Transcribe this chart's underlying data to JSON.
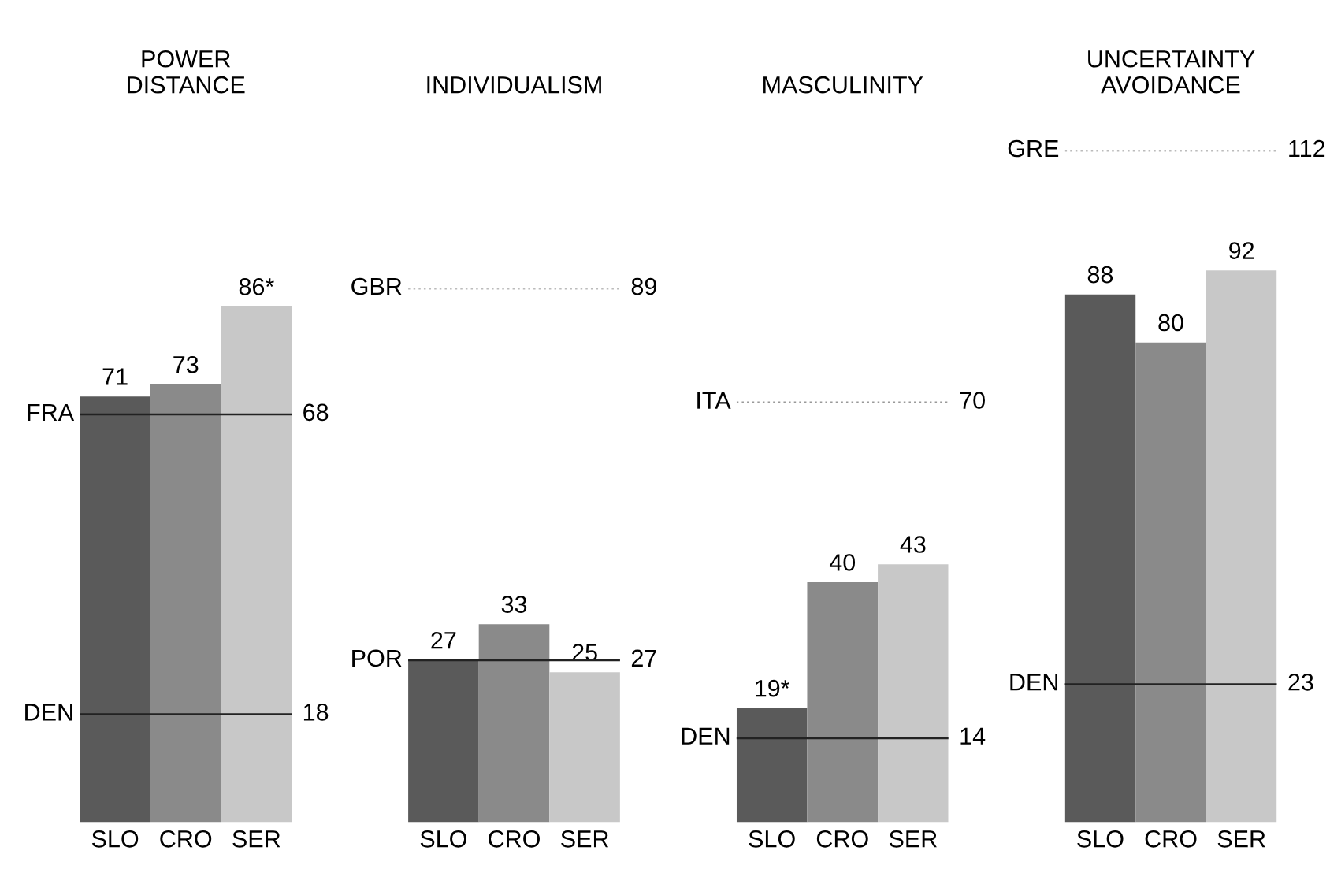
{
  "chart_data": [
    {
      "type": "bar",
      "title": "POWER\nDISTANCE",
      "categories": [
        "SLO",
        "CRO",
        "SER"
      ],
      "values": [
        71,
        73,
        86
      ],
      "value_labels": [
        "71",
        "73",
        "86*"
      ],
      "colors": [
        "#5a5a5a",
        "#8a8a8a",
        "#c8c8c8"
      ],
      "tick_labels": "x",
      "ref_lines": [
        {
          "axis": "y",
          "value": 68,
          "label": "FRA",
          "line_style": "solid",
          "color": "#222222"
        },
        {
          "axis": "y",
          "value": 18,
          "label": "DEN",
          "line_style": "solid",
          "color": "#222222"
        }
      ],
      "annotations": [
        "68",
        "18"
      ]
    },
    {
      "type": "bar",
      "title": "INDIVIDUALISM",
      "categories": [
        "SLO",
        "CRO",
        "SER"
      ],
      "values": [
        27,
        33,
        25
      ],
      "data_labels": true,
      "colors": [
        "#5a5a5a",
        "#8a8a8a",
        "#c8c8c8"
      ],
      "tick_labels": "x",
      "ref_lines": [
        {
          "axis": "y",
          "value": 89,
          "label": "GBR",
          "line_style": "dotted",
          "color": "#bbbbbb"
        },
        {
          "axis": "y",
          "value": 27,
          "label": "POR",
          "line_style": "solid",
          "color": "#222222"
        }
      ],
      "annotations": [
        "89",
        "27"
      ]
    },
    {
      "type": "bar",
      "title": "MASCULINITY",
      "categories": [
        "SLO",
        "CRO",
        "SER"
      ],
      "values": [
        19,
        40,
        43
      ],
      "value_labels": [
        "19*",
        "40",
        "43"
      ],
      "colors": [
        "#5a5a5a",
        "#8a8a8a",
        "#c8c8c8"
      ],
      "tick_labels": "x",
      "ref_lines": [
        {
          "axis": "y",
          "value": 70,
          "label": "ITA",
          "line_style": "dotted",
          "color": "#999999"
        },
        {
          "axis": "y",
          "value": 14,
          "label": "DEN",
          "line_style": "solid",
          "color": "#222222"
        }
      ],
      "annotations": [
        "70",
        "14"
      ]
    },
    {
      "type": "bar",
      "title": "UNCERTAINTY\nAVOIDANCE",
      "categories": [
        "SLO",
        "CRO",
        "SER"
      ],
      "values": [
        88,
        80,
        92
      ],
      "data_labels": true,
      "colors": [
        "#5a5a5a",
        "#8a8a8a",
        "#c8c8c8"
      ],
      "tick_labels": "x",
      "ref_lines": [
        {
          "axis": "y",
          "value": 112,
          "label": "GRE",
          "line_style": "dotted",
          "color": "#bbbbbb"
        },
        {
          "axis": "y",
          "value": 23,
          "label": "DEN",
          "line_style": "solid",
          "color": "#222222"
        }
      ],
      "annotations": [
        "112",
        "23"
      ]
    }
  ]
}
